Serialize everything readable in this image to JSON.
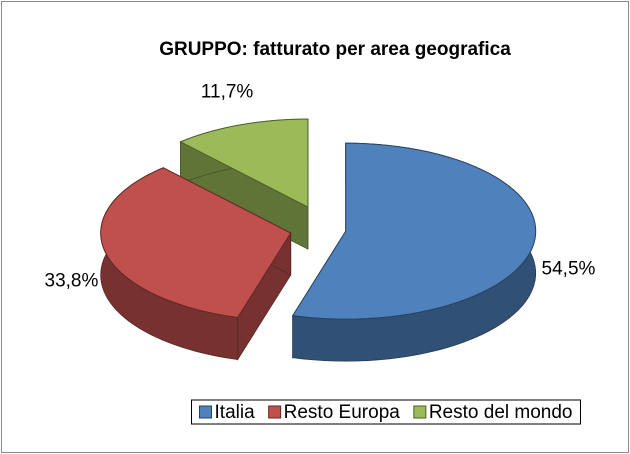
{
  "chart_data": {
    "type": "pie3d",
    "title": "GRUPPO: fatturato per area geografica",
    "categories": [
      "Italia",
      "Resto Europa",
      "Resto del mondo"
    ],
    "values": [
      54.5,
      33.8,
      11.7
    ],
    "value_labels": [
      "54,5%",
      "33,8%",
      "11,7%"
    ],
    "colors": [
      "#4f81bd",
      "#c0504d",
      "#9bbb59"
    ],
    "legend": "bottom"
  }
}
